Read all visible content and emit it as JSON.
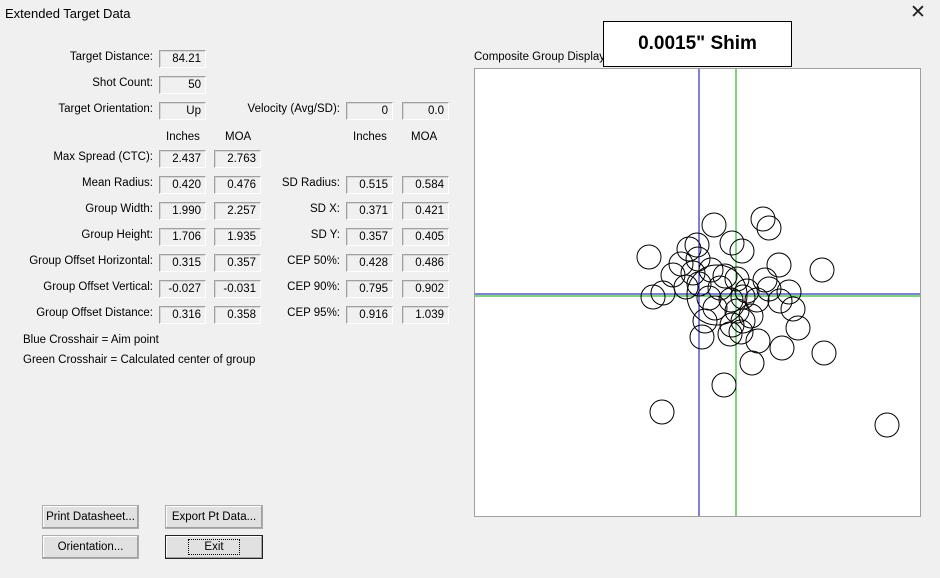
{
  "window": {
    "title": "Extended Target Data",
    "close_symbol": "✕"
  },
  "banner": "0.0015\" Shim",
  "plot_label": "Composite Group Display",
  "top": {
    "target_distance": {
      "label": "Target Distance:",
      "value": "84.21"
    },
    "shot_count": {
      "label": "Shot Count:",
      "value": "50"
    },
    "target_orientation": {
      "label": "Target Orientation:",
      "value": "Up"
    },
    "velocity": {
      "label": "Velocity (Avg/SD):",
      "avg": "0",
      "sd": "0.0"
    }
  },
  "col_headers": {
    "left_inches": "Inches",
    "left_moa": "MOA",
    "right_inches": "Inches",
    "right_moa": "MOA"
  },
  "left_rows": [
    {
      "label": "Max Spread (CTC):",
      "inches": "2.437",
      "moa": "2.763"
    },
    {
      "label": "Mean Radius:",
      "inches": "0.420",
      "moa": "0.476"
    },
    {
      "label": "Group Width:",
      "inches": "1.990",
      "moa": "2.257"
    },
    {
      "label": "Group Height:",
      "inches": "1.706",
      "moa": "1.935"
    },
    {
      "label": "Group Offset Horizontal:",
      "inches": "0.315",
      "moa": "0.357"
    },
    {
      "label": "Group Offset Vertical:",
      "inches": "-0.027",
      "moa": "-0.031"
    },
    {
      "label": "Group Offset Distance:",
      "inches": "0.316",
      "moa": "0.358"
    }
  ],
  "right_rows": [
    {
      "label": "SD Radius:",
      "inches": "0.515",
      "moa": "0.584"
    },
    {
      "label": "SD X:",
      "inches": "0.371",
      "moa": "0.421"
    },
    {
      "label": "SD Y:",
      "inches": "0.357",
      "moa": "0.405"
    },
    {
      "label": "CEP 50%:",
      "inches": "0.428",
      "moa": "0.486"
    },
    {
      "label": "CEP 90%:",
      "inches": "0.795",
      "moa": "0.902"
    },
    {
      "label": "CEP 95%:",
      "inches": "0.916",
      "moa": "1.039"
    }
  ],
  "legend": {
    "blue": "Blue Crosshair = Aim point",
    "green": "Green Crosshair = Calculated center of group"
  },
  "buttons": {
    "print": "Print Datasheet...",
    "export": "Export Pt Data...",
    "orientation": "Orientation...",
    "exit": "Exit"
  },
  "colors": {
    "aim_crosshair": "#0000aa",
    "center_crosshair": "#00aa00",
    "shot_outline": "#000000"
  }
}
